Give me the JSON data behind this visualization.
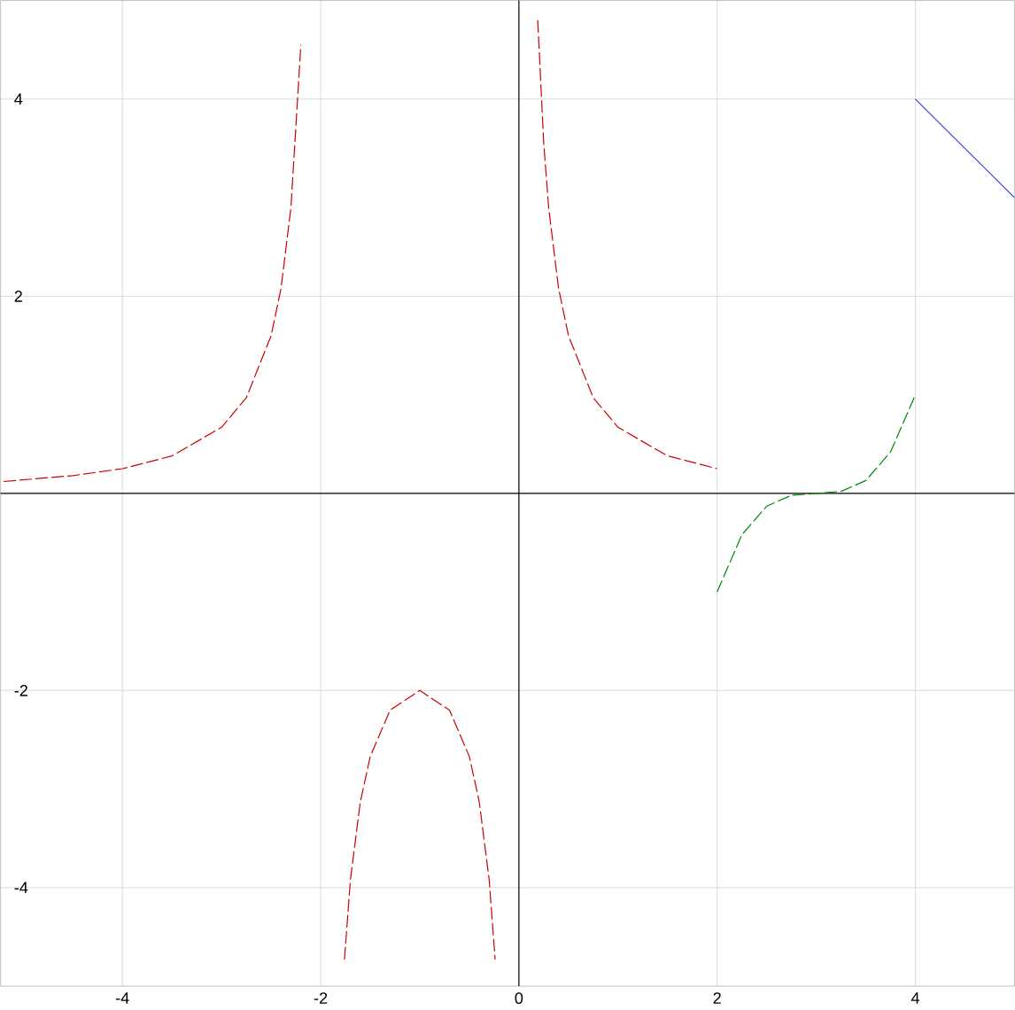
{
  "chart_data": {
    "type": "line",
    "xlim": [
      -5.23,
      5
    ],
    "ylim": [
      -5,
      5
    ],
    "xticks": [
      -4,
      -2,
      0,
      2,
      4
    ],
    "yticks": [
      -4,
      -2,
      {
        "value": 0,
        "label": null
      },
      2,
      4
    ],
    "grid": true,
    "series": [
      {
        "color": "#cc0000",
        "line_style": "dashed",
        "x": [
          -5.2,
          -4.5,
          -4,
          -3.5,
          -3,
          -2.75,
          -2.5,
          -2.4,
          -2.3,
          -2.2
        ],
        "values": [
          0.12,
          0.18,
          0.25,
          0.38,
          0.67,
          0.97,
          1.6,
          2.08,
          2.9,
          4.55
        ]
      },
      {
        "color": "#cc0000",
        "line_style": "dashed",
        "x": [
          -1.76,
          -1.7,
          -1.6,
          -1.5,
          -1.3,
          -1,
          -0.7,
          -0.5,
          -0.4,
          -0.3,
          -0.24
        ],
        "values": [
          -4.73,
          -3.92,
          -3.13,
          -2.67,
          -2.2,
          -2,
          -2.2,
          -2.67,
          -3.13,
          -3.92,
          -4.73
        ]
      },
      {
        "color": "#cc0000",
        "line_style": "dashed",
        "x": [
          0.19,
          0.25,
          0.3,
          0.4,
          0.5,
          0.75,
          1,
          1.5,
          2
        ],
        "values": [
          4.8,
          3.56,
          2.9,
          2.08,
          1.6,
          0.97,
          0.67,
          0.38,
          0.25
        ]
      },
      {
        "color": "#008800",
        "line_style": "dashed",
        "x": [
          2,
          2.25,
          2.5,
          2.75,
          3,
          3.25,
          3.5,
          3.75,
          4
        ],
        "values": [
          -1,
          -0.42,
          -0.13,
          -0.02,
          0,
          0.02,
          0.13,
          0.42,
          1
        ]
      },
      {
        "color": "#3344dd",
        "line_style": "solid",
        "x": [
          4,
          5
        ],
        "values": [
          4,
          3
        ]
      }
    ]
  }
}
